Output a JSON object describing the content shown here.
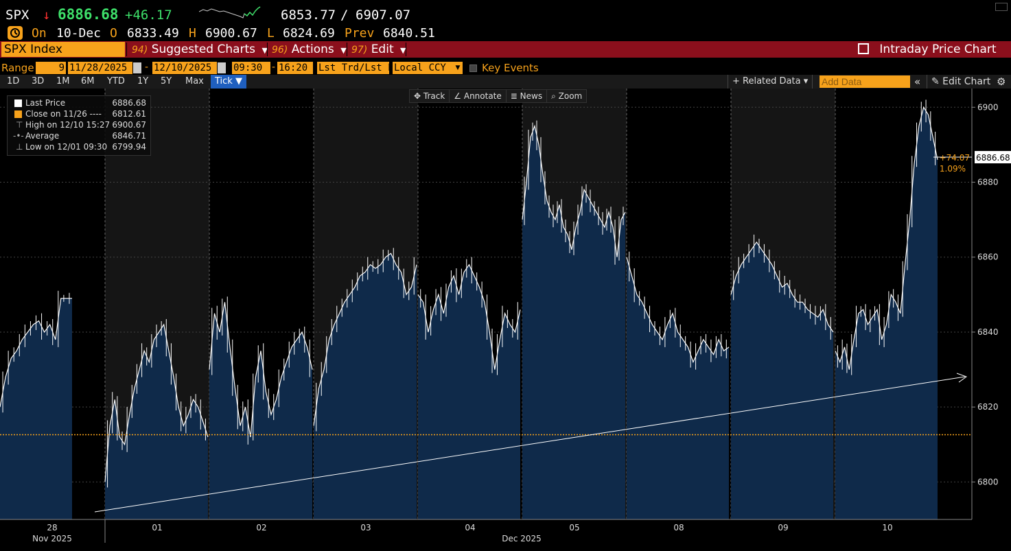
{
  "quote": {
    "ticker": "SPX",
    "direction_arrow": "↓",
    "last": "6886.68",
    "change": "+46.17",
    "bid": "6853.77",
    "separator": "/",
    "ask": "6907.07",
    "on_label": "On",
    "date": "10-Dec",
    "open_label": "O",
    "open": "6833.49",
    "high_label": "H",
    "high": "6900.67",
    "low_label": "L",
    "low": "6824.69",
    "prev_label": "Prev",
    "prev": "6840.51"
  },
  "function_bar": {
    "security": "SPX Index",
    "suggested_num": "94)",
    "suggested_label": "Suggested Charts",
    "actions_num": "96)",
    "actions_label": "Actions",
    "edit_num": "97)",
    "edit_label": "Edit",
    "title": "Intraday Price Chart"
  },
  "range_bar": {
    "range_label": "Range",
    "days": "9",
    "start_date": "11/28/2025",
    "end_date": "12/10/2025",
    "start_time": "09:30",
    "end_time": "16:20",
    "market_data": "Lst Trd/Lst P:",
    "currency": "Local CCY",
    "key_events_label": "Key Events"
  },
  "period_bar": {
    "periods": [
      "1D",
      "3D",
      "1M",
      "6M",
      "YTD",
      "1Y",
      "5Y",
      "Max"
    ],
    "tick_label": "Tick ▼",
    "related_data": "+ Related Data ▾",
    "add_data_placeholder": "Add Data",
    "collapse": "«",
    "edit_chart": "✎ Edit Chart",
    "settings_icon": "gear-icon"
  },
  "chart_tools": {
    "track": "Track",
    "annotate": "Annotate",
    "news": "News",
    "zoom": "Zoom"
  },
  "legend": {
    "rows": [
      {
        "name": "Last Price",
        "value": "6886.68"
      },
      {
        "name": "Close on 11/26 ----",
        "value": "6812.61"
      },
      {
        "name": "High on 12/10 15:27",
        "value": "6900.67"
      },
      {
        "name": "Average",
        "value": "6846.71"
      },
      {
        "name": "Low on 12/01 09:30",
        "value": "6799.94"
      }
    ]
  },
  "colors": {
    "accent": "#f7a21b",
    "bar": "#8b0f1c",
    "area": "#0f2a4a",
    "change_up": "#3ee06a",
    "down_arrow": "#ff3030"
  },
  "chart_data": {
    "type": "area",
    "ylim": [
      6790,
      6905
    ],
    "yticks": [
      6800,
      6820,
      6840,
      6860,
      6880,
      6900
    ],
    "prev_close": 6812.61,
    "last_price_label": "6886.68",
    "change_label": "+74.07",
    "change_pct_label": "1.09%",
    "grid": true,
    "x_labels": [
      {
        "day": "28",
        "month": "Nov 2025"
      },
      {
        "day": "01",
        "month": ""
      },
      {
        "day": "02",
        "month": ""
      },
      {
        "day": "03",
        "month": ""
      },
      {
        "day": "04",
        "month": ""
      },
      {
        "day": "05",
        "month": "Dec 2025"
      },
      {
        "day": "08",
        "month": ""
      },
      {
        "day": "09",
        "month": ""
      },
      {
        "day": "10",
        "month": ""
      }
    ],
    "sessions": [
      {
        "day": "28",
        "values": [
          6820,
          6828,
          6833,
          6835,
          6838,
          6840,
          6842,
          6843,
          6840,
          6842,
          6838,
          6849,
          6849,
          6849
        ]
      },
      {
        "day": "01",
        "values": [
          6800,
          6815,
          6822,
          6812,
          6810,
          6818,
          6825,
          6830,
          6835,
          6832,
          6838,
          6840,
          6842,
          6835,
          6828,
          6820,
          6815,
          6818,
          6822,
          6820,
          6816,
          6812
        ]
      },
      {
        "day": "02",
        "values": [
          6830,
          6845,
          6840,
          6848,
          6836,
          6825,
          6815,
          6820,
          6812,
          6828,
          6835,
          6824,
          6818,
          6822,
          6828,
          6832,
          6836,
          6838,
          6840,
          6836,
          6830
        ]
      },
      {
        "day": "03",
        "values": [
          6815,
          6825,
          6830,
          6838,
          6842,
          6845,
          6848,
          6850,
          6852,
          6855,
          6856,
          6858,
          6857,
          6858,
          6860,
          6861,
          6858,
          6856,
          6850,
          6852,
          6858
        ]
      },
      {
        "day": "04",
        "values": [
          6850,
          6848,
          6840,
          6846,
          6850,
          6845,
          6852,
          6855,
          6850,
          6856,
          6858,
          6855,
          6852,
          6848,
          6840,
          6830,
          6838,
          6845,
          6842,
          6840,
          6846
        ]
      },
      {
        "day": "05",
        "values": [
          6870,
          6880,
          6892,
          6895,
          6890,
          6882,
          6875,
          6872,
          6870,
          6874,
          6868,
          6866,
          6862,
          6868,
          6872,
          6878,
          6876,
          6874,
          6872,
          6870,
          6868,
          6872,
          6868,
          6860,
          6870,
          6872
        ]
      },
      {
        "day": "08",
        "values": [
          6860,
          6855,
          6850,
          6848,
          6845,
          6842,
          6840,
          6838,
          6842,
          6845,
          6840,
          6838,
          6836,
          6832,
          6835,
          6838,
          6836,
          6834,
          6838,
          6835,
          6836
        ]
      },
      {
        "day": "09",
        "values": [
          6850,
          6855,
          6858,
          6860,
          6862,
          6864,
          6862,
          6860,
          6858,
          6855,
          6852,
          6853,
          6850,
          6848,
          6848,
          6846,
          6845,
          6844,
          6846,
          6842,
          6840
        ]
      },
      {
        "day": "10",
        "values": [
          6835,
          6832,
          6836,
          6830,
          6838,
          6845,
          6846,
          6842,
          6844,
          6846,
          6838,
          6842,
          6850,
          6848,
          6845,
          6858,
          6870,
          6885,
          6895,
          6900,
          6898,
          6892,
          6886
        ]
      }
    ]
  }
}
